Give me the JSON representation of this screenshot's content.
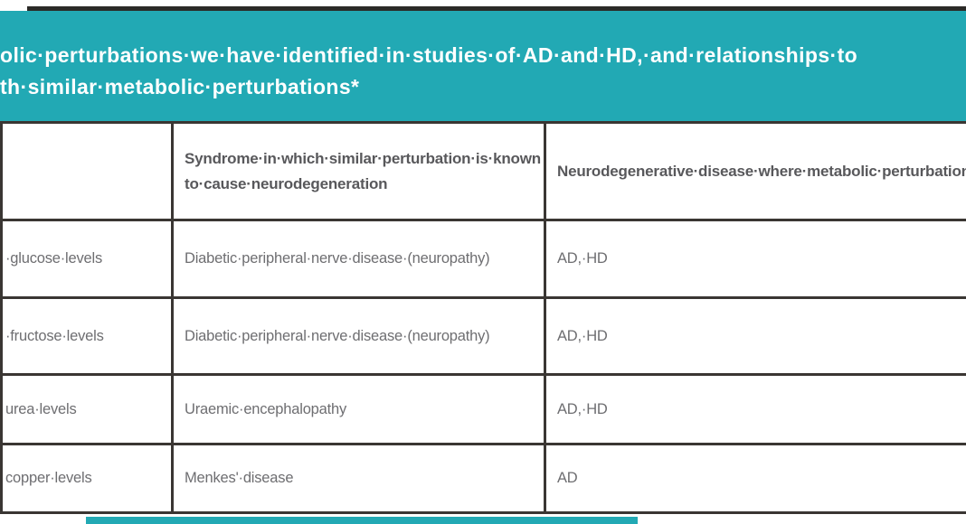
{
  "colors": {
    "band_teal": "#22a9b4",
    "table_border": "#3a3633",
    "top_line": "#2b2a27",
    "title_text": "#ffffff",
    "header_text": "#58585b",
    "cell_text": "#6e6e71"
  },
  "title": {
    "line1": "olic·perturbations·we·have·identified·in·studies·of·AD·and·HD,·and·relationships·to",
    "line2": "th·similar·metabolic·perturbations*"
  },
  "table": {
    "columns": [
      {
        "header": ""
      },
      {
        "header": "Syndrome·in·which·similar·perturbation·is·known\nto·cause·neurodegeneration"
      },
      {
        "header": "Neurodegenerative·disease·where·metabolic·perturbation·occurs"
      }
    ],
    "rows": [
      {
        "metabolite": "·glucose·levels",
        "syndrome": "Diabetic·peripheral·nerve·disease·(neuropathy)",
        "diseases": "AD,·HD"
      },
      {
        "metabolite": "·fructose·levels",
        "syndrome": "Diabetic·peripheral·nerve·disease·(neuropathy)",
        "diseases": "AD,·HD"
      },
      {
        "metabolite": "urea·levels",
        "syndrome": "Uraemic·encephalopathy",
        "diseases": "AD,·HD"
      },
      {
        "metabolite": "copper·levels",
        "syndrome": "Menkes'·disease",
        "diseases": "AD"
      }
    ]
  }
}
